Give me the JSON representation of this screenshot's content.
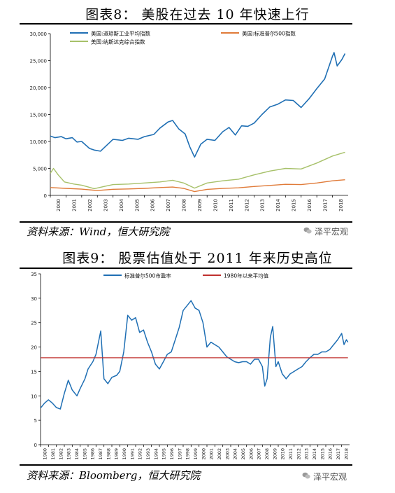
{
  "figure8": {
    "title": "图表8：  美股在过去 10 年快速上行",
    "source": "资料来源：Wind，恒大研究院",
    "watermark": "泽平宏观"
  },
  "figure9": {
    "title": "图表9：  股票估值处于 2011 年来历史高位",
    "source": "资料来源：Bloomberg，恒大研究院",
    "watermark": "泽平宏观"
  },
  "colors": {
    "blue": "#1f6fb4",
    "orange": "#e07b39",
    "green": "#a7c16a",
    "red": "#c0302e"
  },
  "chart_data": [
    {
      "type": "line",
      "title": "",
      "xlabel": "",
      "ylabel": "",
      "ylim": [
        0,
        30000
      ],
      "yticks": [
        "0",
        "5,000",
        "10,000",
        "15,000",
        "20,000",
        "25,000",
        "30,000"
      ],
      "x_tick_labels": [
        "2000",
        "2001",
        "2002",
        "2003",
        "2004",
        "2005",
        "2006",
        "2007",
        "2008",
        "2009",
        "2010",
        "2011",
        "2012",
        "2013",
        "2014",
        "2015",
        "2016",
        "2017",
        "2018"
      ],
      "legend_position": "top",
      "series": [
        {
          "name": "美国:道琼斯工业平均指数",
          "color": "#1f6fb4",
          "x": [
            2000,
            2000.3,
            2000.7,
            2001.0,
            2001.4,
            2001.7,
            2002.0,
            2002.5,
            2002.8,
            2003.2,
            2003.6,
            2004.0,
            2004.6,
            2005.0,
            2005.6,
            2006.0,
            2006.6,
            2007.0,
            2007.5,
            2007.8,
            2008.2,
            2008.6,
            2008.9,
            2009.2,
            2009.6,
            2010.0,
            2010.5,
            2011.0,
            2011.4,
            2011.8,
            2012.2,
            2012.6,
            2013.0,
            2013.5,
            2014.0,
            2014.5,
            2015.0,
            2015.5,
            2016.0,
            2016.5,
            2017.0,
            2017.5,
            2018.0,
            2018.1,
            2018.3,
            2018.6,
            2018.8
          ],
          "values": [
            11000,
            10700,
            10900,
            10500,
            10700,
            9900,
            10000,
            8700,
            8400,
            8200,
            9300,
            10400,
            10200,
            10600,
            10400,
            10900,
            11300,
            12500,
            13600,
            13900,
            12300,
            11400,
            9000,
            7100,
            9500,
            10400,
            10200,
            11800,
            12600,
            11200,
            12900,
            12800,
            13400,
            15000,
            16400,
            16900,
            17700,
            17600,
            16300,
            17900,
            19800,
            21600,
            25800,
            26500,
            24000,
            25200,
            26300
          ]
        },
        {
          "name": "美国:标准普尔500指数",
          "color": "#e07b39",
          "x": [
            2000,
            2001,
            2002,
            2003,
            2004,
            2005,
            2006,
            2007,
            2007.8,
            2008.5,
            2009.2,
            2010,
            2011,
            2012,
            2013,
            2014,
            2015,
            2016,
            2017,
            2018,
            2018.8
          ],
          "values": [
            1450,
            1300,
            1150,
            900,
            1130,
            1200,
            1300,
            1450,
            1550,
            1300,
            700,
            1120,
            1280,
            1400,
            1650,
            1850,
            2050,
            2000,
            2300,
            2700,
            2900
          ]
        },
        {
          "name": "美国:纳斯达克综合指数",
          "color": "#a7c16a",
          "x": [
            2000,
            2000.2,
            2000.5,
            2000.9,
            2001.5,
            2002.0,
            2002.8,
            2003.5,
            2004.0,
            2005.0,
            2006.0,
            2007.0,
            2007.8,
            2008.5,
            2009.2,
            2010,
            2011,
            2012,
            2013,
            2014,
            2015,
            2016,
            2017,
            2018,
            2018.8
          ],
          "values": [
            4100,
            5000,
            3800,
            2500,
            2100,
            1900,
            1250,
            1700,
            2000,
            2100,
            2300,
            2500,
            2800,
            2300,
            1350,
            2300,
            2700,
            3000,
            3800,
            4500,
            5000,
            4900,
            6000,
            7300,
            8000
          ]
        }
      ]
    },
    {
      "type": "line",
      "title": "",
      "xlabel": "",
      "ylabel": "",
      "ylim": [
        0,
        35
      ],
      "yticks": [
        "0",
        "5",
        "10",
        "15",
        "20",
        "25",
        "30",
        "35"
      ],
      "x_tick_labels": [
        "1980",
        "1981",
        "1982",
        "1983",
        "1984",
        "1985",
        "1986",
        "1987",
        "1988",
        "1989",
        "1990",
        "1991",
        "1992",
        "1993",
        "1994",
        "1995",
        "1996",
        "1997",
        "1998",
        "1999",
        "2000",
        "2001",
        "2002",
        "2003",
        "2004",
        "2005",
        "2006",
        "2007",
        "2008",
        "2009",
        "2010",
        "2011",
        "2012",
        "2013",
        "2014",
        "2015",
        "2016",
        "2017",
        "2018"
      ],
      "legend_position": "top",
      "series": [
        {
          "name": "标准普尔500市盈率",
          "color": "#1f6fb4",
          "x": [
            1980,
            1980.5,
            1981,
            1981.5,
            1982,
            1982.5,
            1983,
            1983.5,
            1984,
            1984.6,
            1985,
            1985.6,
            1986,
            1986.6,
            1987,
            1987.6,
            1988,
            1988.5,
            1989,
            1989.6,
            1990,
            1990.5,
            1991,
            1991.5,
            1992,
            1992.5,
            1993,
            1993.5,
            1994,
            1994.5,
            1995,
            1995.5,
            1996,
            1996.5,
            1997,
            1997.5,
            1998,
            1998.5,
            1999,
            1999.5,
            2000,
            2000.5,
            2001,
            2001.5,
            2002,
            2002.5,
            2003,
            2003.5,
            2004,
            2004.5,
            2005,
            2005.5,
            2006,
            2006.5,
            2007,
            2007.5,
            2008,
            2008.3,
            2008.6,
            2009,
            2009.3,
            2009.7,
            2010,
            2010.5,
            2011,
            2011.5,
            2012,
            2012.5,
            2013,
            2013.5,
            2014,
            2014.5,
            2015,
            2015.5,
            2016,
            2016.5,
            2017,
            2017.5,
            2018,
            2018.3,
            2018.6,
            2018.8
          ],
          "values": [
            7.5,
            8.5,
            9.2,
            8.5,
            7.6,
            7.3,
            10.5,
            13.2,
            11.2,
            10.0,
            11.5,
            13.5,
            15.5,
            17.0,
            18.5,
            23.3,
            13.5,
            12.5,
            13.8,
            14.2,
            15.0,
            19.0,
            26.5,
            25.5,
            26.0,
            23.0,
            23.5,
            21.0,
            19.0,
            16.5,
            15.5,
            17.0,
            18.5,
            19.0,
            21.5,
            24.0,
            27.5,
            28.5,
            29.5,
            28.0,
            27.5,
            25.0,
            20.0,
            21.0,
            20.5,
            20.0,
            19.0,
            18.0,
            17.5,
            17.0,
            16.8,
            17.0,
            17.0,
            16.5,
            17.5,
            17.5,
            16.0,
            12.0,
            13.5,
            22.0,
            24.2,
            16.0,
            17.0,
            14.5,
            13.5,
            14.5,
            15.0,
            15.5,
            16.0,
            17.0,
            17.8,
            18.5,
            18.5,
            19.0,
            19.0,
            19.5,
            20.5,
            21.5,
            22.8,
            20.5,
            21.5,
            21.0
          ]
        },
        {
          "name": "1980年以来平均值",
          "color": "#c0302e",
          "x": [
            1980,
            2018.8
          ],
          "values": [
            17.8,
            17.8
          ]
        }
      ]
    }
  ]
}
